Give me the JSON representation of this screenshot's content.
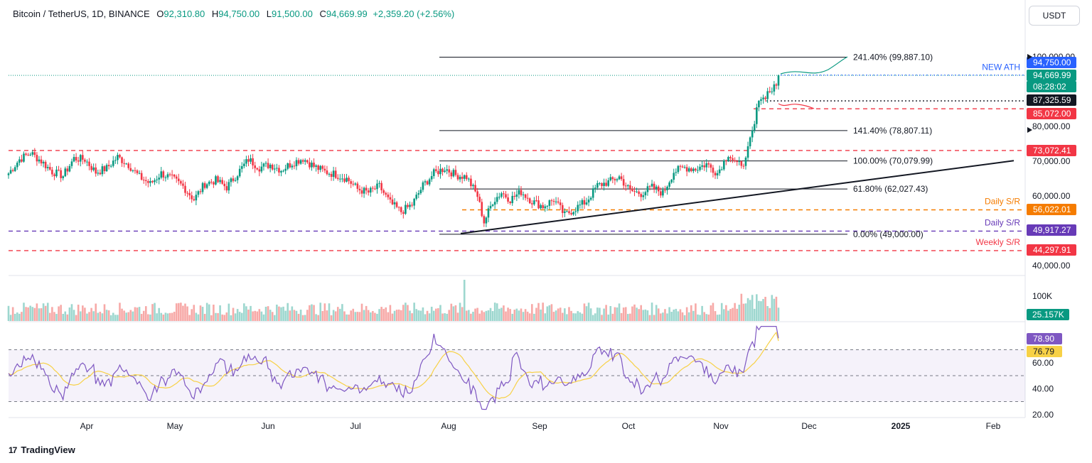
{
  "header": {
    "symbol": "Bitcoin / TetherUS, 1D, BINANCE",
    "o_label": "O",
    "o_value": "92,310.80",
    "h_label": "H",
    "h_value": "94,750.00",
    "l_label": "L",
    "l_value": "91,500.00",
    "c_label": "C",
    "c_value": "94,669.99",
    "change": "+2,359.20 (+2.56%)"
  },
  "currency_button": "USDT",
  "brand": {
    "name": "TradingView",
    "logo": "17"
  },
  "colors": {
    "up": "#089981",
    "down": "#f23645",
    "volume_up": "#9dd7cf",
    "volume_down": "#f7a9a7",
    "rsi": "#7e57c2",
    "rsi_ma": "#f7d146",
    "new_ath": "#2962ff",
    "daily_sr_orange": "#f57c00",
    "daily_sr_purple": "#673ab7",
    "weekly_sr": "#f23645"
  },
  "chart_data": [
    {
      "type": "candlestick",
      "title": "Bitcoin / TetherUS, 1D, BINANCE",
      "x_tick_labels": [
        "Apr",
        "May",
        "Jun",
        "Jul",
        "Aug",
        "Sep",
        "Oct",
        "Nov",
        "Dec",
        "2025",
        "Feb"
      ],
      "y_tick_labels": [
        "100,000.00",
        "80,000.00",
        "70,000.00",
        "60,000.00",
        "40,000.00"
      ],
      "ylim": [
        38000,
        103000
      ],
      "annotations": [
        {
          "label": "241.40% (99,887.10)",
          "value": 99887.1
        },
        {
          "label": "141.40% (78,807.11)",
          "value": 78807.11
        },
        {
          "label": "100.00% (70,079.99)",
          "value": 70079.99
        },
        {
          "label": "61.80% (62,027.43)",
          "value": 62027.43
        },
        {
          "label": "0.00% (49,000.00)",
          "value": 49000.0
        },
        {
          "label": "NEW ATH",
          "value": 94750.0
        },
        {
          "label": "Daily S/R",
          "value": 56022.01
        },
        {
          "label": "Daily S/R",
          "value": 49917.27
        },
        {
          "label": "Weekly S/R",
          "value": 44297.91
        }
      ],
      "price_tags": [
        {
          "text": "94,750.00",
          "value": 94750.0,
          "color": "#2962ff"
        },
        {
          "text": "94,669.99",
          "value": 94669.99,
          "color": "#089981"
        },
        {
          "text": "08:28:02",
          "value": 93100.0,
          "color": "#089981"
        },
        {
          "text": "87,325.59",
          "value": 87325.59,
          "color": "#131722"
        },
        {
          "text": "85,072.00",
          "value": 85072.0,
          "color": "#f23645"
        },
        {
          "text": "73,072.41",
          "value": 73072.41,
          "color": "#f23645"
        },
        {
          "text": "56,022.01",
          "value": 56022.01,
          "color": "#f57c00"
        },
        {
          "text": "49,917.27",
          "value": 49917.27,
          "color": "#673ab7"
        },
        {
          "text": "44,297.91",
          "value": 44297.91,
          "color": "#f23645"
        }
      ],
      "series": [
        {
          "close_path": [
            [
              0,
              66500
            ],
            [
              5,
              70500
            ],
            [
              10,
              72400
            ],
            [
              15,
              70000
            ],
            [
              20,
              67000
            ],
            [
              25,
              65800
            ],
            [
              30,
              70800
            ],
            [
              35,
              70500
            ],
            [
              40,
              66800
            ],
            [
              45,
              68000
            ],
            [
              50,
              71200
            ],
            [
              55,
              69000
            ],
            [
              60,
              65500
            ],
            [
              65,
              63500
            ],
            [
              70,
              66500
            ],
            [
              75,
              65000
            ],
            [
              80,
              62800
            ],
            [
              85,
              59000
            ],
            [
              90,
              63500
            ],
            [
              95,
              64500
            ],
            [
              100,
              62500
            ],
            [
              105,
              66500
            ],
            [
              110,
              70500
            ],
            [
              115,
              68200
            ],
            [
              120,
              69000
            ],
            [
              125,
              67500
            ],
            [
              130,
              69500
            ],
            [
              135,
              70800
            ],
            [
              140,
              68500
            ],
            [
              145,
              67000
            ],
            [
              150,
              66200
            ],
            [
              155,
              65000
            ],
            [
              160,
              62000
            ],
            [
              165,
              61000
            ],
            [
              170,
              62800
            ],
            [
              175,
              58000
            ],
            [
              180,
              55500
            ],
            [
              185,
              57500
            ],
            [
              190,
              63000
            ],
            [
              195,
              66500
            ],
            [
              200,
              68000
            ],
            [
              205,
              66000
            ],
            [
              210,
              65500
            ],
            [
              215,
              60000
            ],
            [
              218,
              52500
            ],
            [
              222,
              58500
            ],
            [
              226,
              61000
            ],
            [
              230,
              59000
            ],
            [
              235,
              61200
            ],
            [
              240,
              58500
            ],
            [
              245,
              57000
            ],
            [
              250,
              59000
            ],
            [
              255,
              54500
            ],
            [
              260,
              56500
            ],
            [
              265,
              58500
            ],
            [
              270,
              63000
            ],
            [
              275,
              64000
            ],
            [
              280,
              65500
            ],
            [
              285,
              61500
            ],
            [
              290,
              60700
            ],
            [
              295,
              62500
            ],
            [
              300,
              60800
            ],
            [
              305,
              67000
            ],
            [
              310,
              68200
            ],
            [
              315,
              67800
            ],
            [
              320,
              69200
            ],
            [
              325,
              66600
            ],
            [
              330,
              72200
            ],
            [
              334,
              68700
            ],
            [
              338,
              70200
            ],
            [
              340,
              76000
            ],
            [
              342,
              80500
            ],
            [
              344,
              88500
            ],
            [
              346,
              88000
            ],
            [
              348,
              89800
            ],
            [
              350,
              90500
            ],
            [
              352,
              91500
            ],
            [
              353,
              94670
            ]
          ]
        },
        {
          "name": "Volume",
          "last_label": "25.157K",
          "y_tick_labels": [
            "100K"
          ]
        },
        {
          "name": "RSI",
          "last_label": "78.90",
          "ma_last_label": "76.79",
          "y_tick_labels": [
            "60.00",
            "40.00",
            "20.00"
          ]
        }
      ]
    }
  ]
}
